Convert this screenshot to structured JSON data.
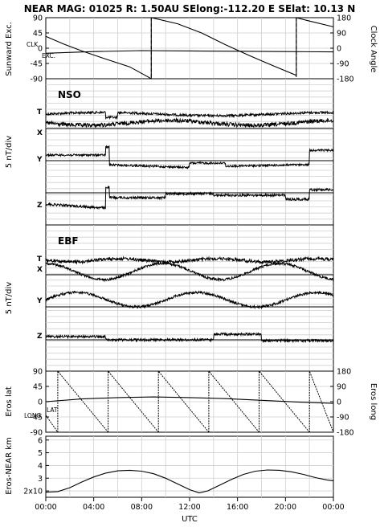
{
  "header": {
    "title": "NEAR MAG: 01025  R: 1.50AU  SElong:-112.20 E  SElat:  10.13 N"
  },
  "colors": {
    "ink": "#000000",
    "grid": "#cfcfcf",
    "background": "#ffffff"
  },
  "chart_data": [
    {
      "id": "sunward",
      "type": "line",
      "ylabel_left": "Sunward Exc.",
      "ylabel_right": "Clock Angle",
      "left_ticks": [
        "90",
        "45",
        "0",
        "-45",
        "-90"
      ],
      "right_ticks": [
        "180",
        "90",
        "0",
        "-90",
        "-180"
      ],
      "ylim": [
        -90,
        90
      ],
      "series": [
        {
          "label": "CLK",
          "points": [
            [
              0,
              35
            ],
            [
              1.5,
              12
            ],
            [
              3,
              -8
            ],
            [
              5,
              -32
            ],
            [
              7,
              -55
            ],
            [
              8.8,
              -90
            ],
            [
              8.8,
              90
            ],
            [
              11,
              72
            ],
            [
              13,
              45
            ],
            [
              15,
              10
            ],
            [
              17,
              -22
            ],
            [
              19,
              -52
            ],
            [
              20.9,
              -80
            ],
            [
              20.9,
              90
            ],
            [
              22,
              80
            ],
            [
              24,
              63
            ]
          ]
        },
        {
          "label": "EXC.",
          "points": [
            [
              0,
              -15
            ],
            [
              4,
              -10
            ],
            [
              8,
              -7
            ],
            [
              12,
              -8
            ],
            [
              16,
              -9
            ],
            [
              20,
              -10
            ],
            [
              24,
              -11
            ]
          ]
        }
      ]
    },
    {
      "id": "nso",
      "type": "line",
      "name": "NSO",
      "ylabel_left": "5 nT/div",
      "traces": [
        "T",
        "X",
        "Y",
        "Z"
      ]
    },
    {
      "id": "ebf",
      "type": "line",
      "name": "EBF",
      "ylabel_left": "5 nT/div",
      "traces": [
        "T",
        "X",
        "Y",
        "Z"
      ]
    },
    {
      "id": "eros",
      "type": "line",
      "ylabel_left": "Eros lat",
      "ylabel_right": "Eros long",
      "left_ticks": [
        "90",
        "45",
        "0",
        "-45",
        "-90"
      ],
      "right_ticks": [
        "180",
        "90",
        "0",
        "-90",
        "-180"
      ],
      "ylim": [
        -90,
        90
      ],
      "series": [
        {
          "label": "LONG",
          "sawtooth_resets": [
            1.0,
            5.2,
            9.4,
            13.6,
            17.8,
            22.0,
            24.0
          ]
        },
        {
          "label": "LAT",
          "points": [
            [
              0,
              0
            ],
            [
              3,
              8
            ],
            [
              6,
              12
            ],
            [
              9,
              14
            ],
            [
              12,
              12
            ],
            [
              15,
              9
            ],
            [
              18,
              4
            ],
            [
              21,
              -1
            ],
            [
              24,
              -5
            ]
          ]
        }
      ]
    },
    {
      "id": "distance",
      "type": "line",
      "ylabel_left": "Eros-NEAR km",
      "left_ticks": [
        "6",
        "5",
        "4",
        "3",
        "2x10"
      ],
      "ylim": [
        1.5,
        6.3
      ],
      "points": [
        [
          0,
          1.9
        ],
        [
          1,
          1.95
        ],
        [
          2,
          2.25
        ],
        [
          3,
          2.7
        ],
        [
          4,
          3.1
        ],
        [
          5,
          3.4
        ],
        [
          6,
          3.58
        ],
        [
          7,
          3.62
        ],
        [
          8,
          3.55
        ],
        [
          9,
          3.35
        ],
        [
          10,
          3.0
        ],
        [
          11,
          2.55
        ],
        [
          12,
          2.1
        ],
        [
          12.8,
          1.85
        ],
        [
          13.5,
          2.0
        ],
        [
          14.5,
          2.45
        ],
        [
          15.5,
          2.9
        ],
        [
          16.5,
          3.3
        ],
        [
          17.5,
          3.55
        ],
        [
          18.5,
          3.65
        ],
        [
          19.5,
          3.62
        ],
        [
          20.5,
          3.5
        ],
        [
          21.5,
          3.3
        ],
        [
          22.5,
          3.05
        ],
        [
          23.5,
          2.85
        ],
        [
          24,
          2.8
        ]
      ]
    }
  ],
  "xaxis": {
    "label": "UTC",
    "ticks": [
      "00:00",
      "04:00",
      "08:00",
      "12:00",
      "16:00",
      "20:00",
      "00:00"
    ],
    "range": [
      0,
      24
    ]
  }
}
